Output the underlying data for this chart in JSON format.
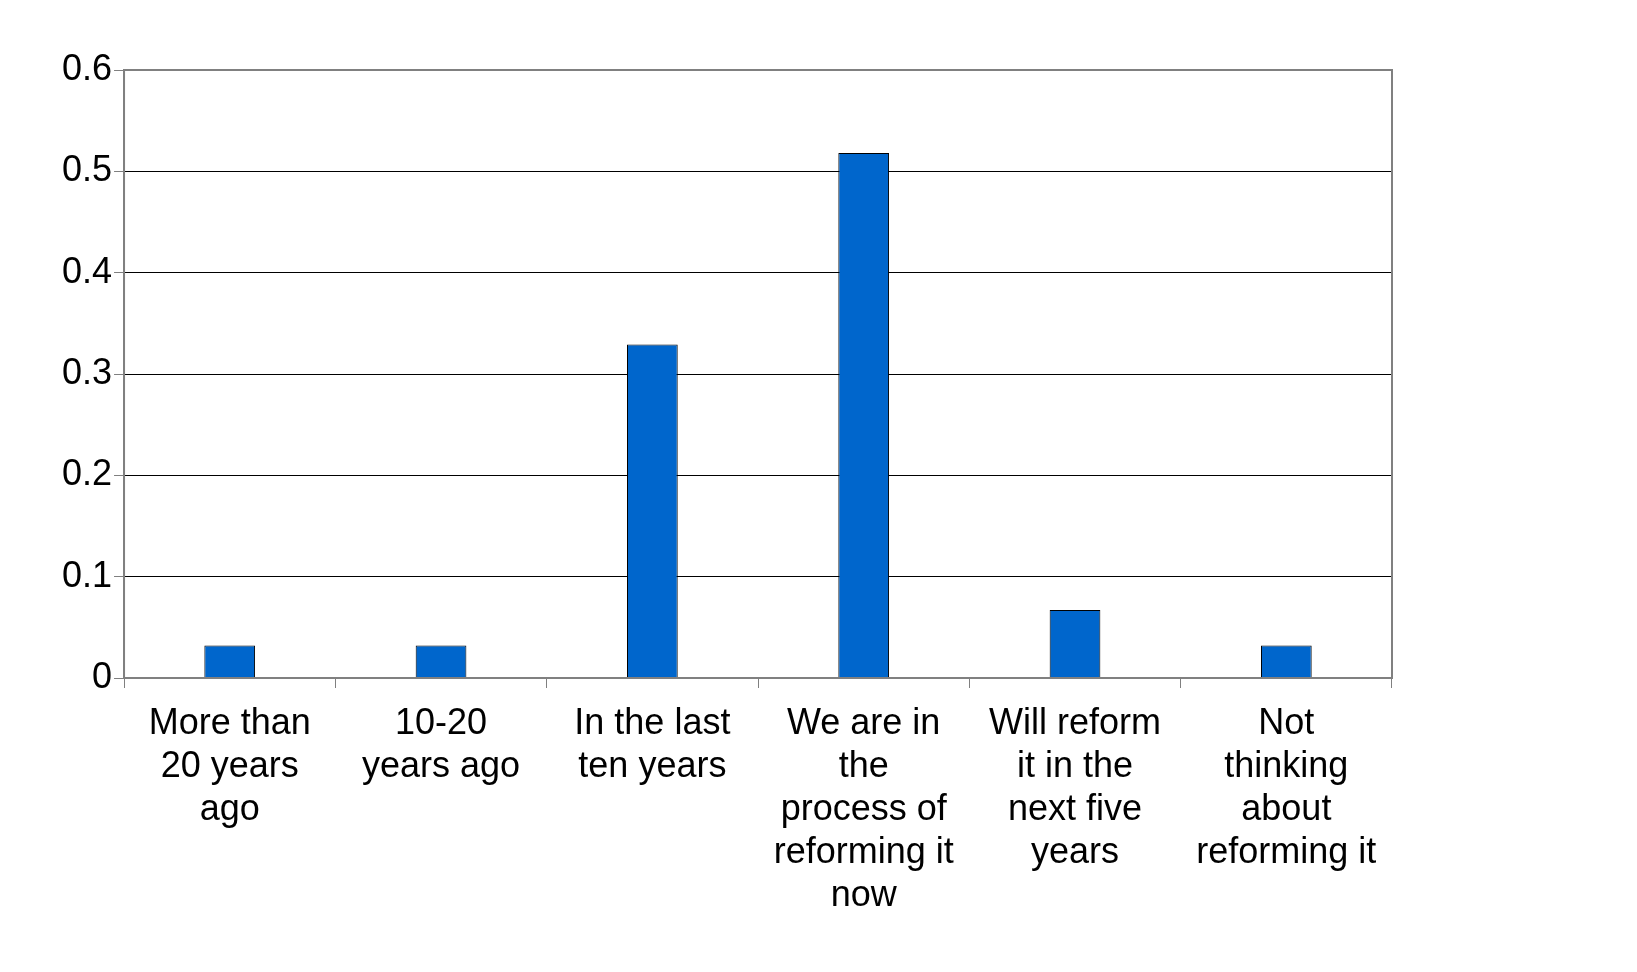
{
  "chart_data": {
    "type": "bar",
    "categories": [
      "More than 20 years ago",
      "10-20 years ago",
      "In the last ten years",
      "We are in the process of reforming it now",
      "Will reform it in the next five years",
      "Not thinking about reforming it"
    ],
    "values": [
      0.032,
      0.032,
      0.329,
      0.518,
      0.067,
      0.032
    ],
    "color": "#0066cc",
    "ylim": [
      0,
      0.6
    ],
    "yticks": [
      0,
      0.1,
      0.2,
      0.3,
      0.4,
      0.5,
      0.6
    ],
    "grid": "y",
    "legend": false
  }
}
